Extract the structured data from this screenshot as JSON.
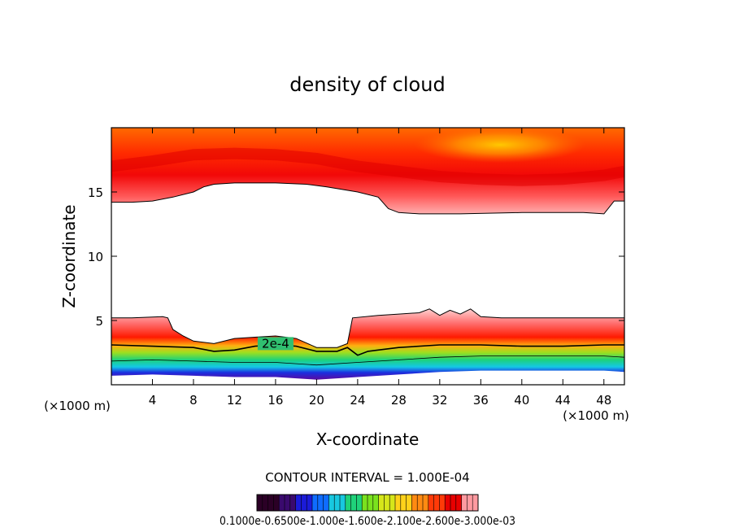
{
  "chart_data": {
    "type": "heatmap",
    "title": "density of cloud",
    "xlabel": "X-coordinate",
    "ylabel": "Z-coordinate",
    "x_unit_left": "(×1000 m)",
    "x_unit_right": "(×1000 m)",
    "xlim": [
      0,
      50
    ],
    "ylim": [
      0,
      20
    ],
    "x_ticks": [
      4,
      8,
      12,
      16,
      20,
      24,
      28,
      32,
      36,
      40,
      44,
      48
    ],
    "y_ticks": [
      5,
      10,
      15
    ],
    "contour_label": "2e-4",
    "contour_interval_text": "CONTOUR INTERVAL = 1.000E-04",
    "colorbar_labels_text": "0.1000e-0.6500e-1.000e-1.600e-2.100e-2.600e-3.000e-03",
    "upper_layer_base": {
      "x": [
        0,
        2,
        4,
        6,
        8,
        9,
        10,
        12,
        16,
        19,
        21,
        24,
        26,
        27,
        28,
        30,
        34,
        40,
        46,
        48,
        49,
        50
      ],
      "z": [
        14.2,
        14.2,
        14.3,
        14.6,
        15.0,
        15.4,
        15.6,
        15.7,
        15.7,
        15.6,
        15.4,
        15.0,
        14.6,
        13.7,
        13.4,
        13.3,
        13.3,
        13.4,
        13.4,
        13.3,
        14.3,
        14.3
      ]
    },
    "lower_layer_top": {
      "x": [
        0,
        2,
        5,
        5.5,
        6,
        7,
        8,
        10,
        12,
        14,
        16,
        18,
        20,
        22,
        23,
        23.5,
        26,
        28,
        30,
        31,
        32,
        33,
        34,
        35,
        36,
        38,
        42,
        46,
        50
      ],
      "z": [
        5.2,
        5.2,
        5.3,
        5.2,
        4.3,
        3.8,
        3.4,
        3.2,
        3.6,
        3.7,
        3.8,
        3.6,
        2.9,
        2.9,
        3.2,
        5.2,
        5.4,
        5.5,
        5.6,
        5.9,
        5.4,
        5.8,
        5.5,
        5.9,
        5.3,
        5.2,
        5.2,
        5.2,
        5.2
      ]
    },
    "contour_2e4": {
      "x": [
        0,
        4,
        8,
        10,
        12,
        14,
        16,
        18,
        20,
        22,
        23,
        24,
        25,
        26,
        28,
        32,
        36,
        40,
        44,
        48,
        50
      ],
      "z": [
        3.1,
        3.0,
        2.9,
        2.6,
        2.7,
        3.0,
        3.1,
        3.0,
        2.6,
        2.6,
        2.9,
        2.3,
        2.6,
        2.7,
        2.9,
        3.1,
        3.1,
        3.0,
        3.0,
        3.1,
        3.1
      ]
    },
    "lower_bottom": {
      "x": [
        0,
        4,
        8,
        12,
        16,
        20,
        24,
        28,
        32,
        36,
        40,
        44,
        48,
        50
      ],
      "z": [
        0.7,
        0.8,
        0.7,
        0.6,
        0.6,
        0.4,
        0.6,
        0.8,
        1.0,
        1.1,
        1.1,
        1.1,
        1.1,
        1.0
      ]
    },
    "upper_core_center": {
      "x": [
        0,
        4,
        8,
        12,
        16,
        20,
        24,
        28,
        32,
        36,
        40,
        44,
        48,
        50
      ],
      "z": [
        17.0,
        17.4,
        17.9,
        18.0,
        17.9,
        17.6,
        17.0,
        16.6,
        16.2,
        16.0,
        15.9,
        16.0,
        16.3,
        16.6
      ]
    },
    "colorbar_colors": [
      "#2b0026",
      "#3a0a6e",
      "#1b1bd8",
      "#0f6cff",
      "#18c8e0",
      "#1fd27a",
      "#7ae21e",
      "#d6e61a",
      "#ffd21a",
      "#ff8a12",
      "#ff3a08",
      "#e80000",
      "#ff9aa0"
    ]
  }
}
